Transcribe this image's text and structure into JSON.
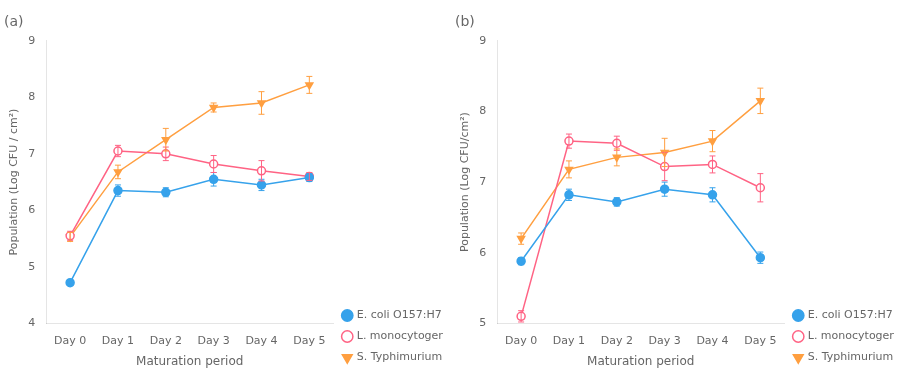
{
  "chart_data": [
    {
      "type": "line",
      "title": "(a)",
      "xlabel": "Maturation period",
      "ylabel": "Population (Log CFU / cm²)",
      "categories": [
        "Day 0",
        "Day 1",
        "Day 2",
        "Day 3",
        "Day 4",
        "Day 5"
      ],
      "series": [
        {
          "name": "E. coli O157:H7",
          "marker": "circle",
          "values": [
            4.72,
            6.35,
            6.32,
            6.55,
            6.45,
            6.58
          ],
          "errors": [
            0.05,
            0.1,
            0.08,
            0.12,
            0.1,
            0.07
          ]
        },
        {
          "name": "L. monocytogenes",
          "marker": "open_circle",
          "values": [
            5.55,
            7.05,
            7.0,
            6.82,
            6.7,
            6.6
          ],
          "errors": [
            0.08,
            0.1,
            0.12,
            0.15,
            0.18,
            0.07
          ]
        },
        {
          "name": "S. Typhimurium",
          "marker": "triangle_down",
          "values": [
            5.53,
            6.68,
            7.25,
            7.82,
            7.9,
            8.22
          ],
          "errors": [
            0.08,
            0.12,
            0.2,
            0.08,
            0.2,
            0.15
          ]
        }
      ],
      "ylim": [
        4,
        9
      ],
      "yticks": [
        4,
        5,
        6,
        7,
        8,
        9
      ],
      "grid": false,
      "legend": "lower right"
    },
    {
      "type": "line",
      "title": "(b)",
      "xlabel": "Maturation period",
      "ylabel": "Population (Log CFU/cm²)",
      "categories": [
        "Day 0",
        "Day 1",
        "Day 2",
        "Day 3",
        "Day 4",
        "Day 5"
      ],
      "series": [
        {
          "name": "E. coli O157:H7",
          "marker": "circle",
          "values": [
            5.88,
            6.82,
            6.72,
            6.9,
            6.82,
            5.93
          ],
          "errors": [
            0.05,
            0.08,
            0.06,
            0.1,
            0.1,
            0.08
          ]
        },
        {
          "name": "L. monocytogenes",
          "marker": "open_circle",
          "values": [
            5.1,
            7.58,
            7.55,
            7.22,
            7.25,
            6.92
          ],
          "errors": [
            0.08,
            0.1,
            0.1,
            0.2,
            0.12,
            0.2
          ]
        },
        {
          "name": "S. Typhimurium",
          "marker": "triangle_down",
          "values": [
            6.2,
            7.18,
            7.35,
            7.42,
            7.58,
            8.15
          ],
          "errors": [
            0.08,
            0.12,
            0.12,
            0.2,
            0.15,
            0.18
          ]
        }
      ],
      "ylim": [
        5,
        9
      ],
      "yticks": [
        5,
        6,
        7,
        8,
        9
      ],
      "grid": false,
      "legend": "lower right"
    }
  ]
}
